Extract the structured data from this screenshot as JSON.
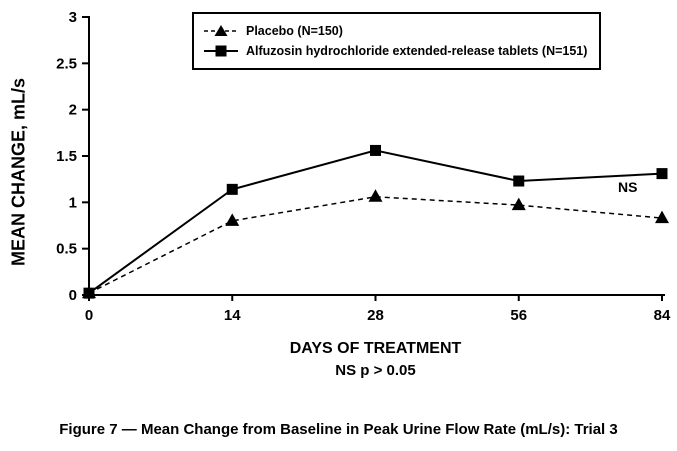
{
  "figure": {
    "caption": "Figure 7 — Mean Change from Baseline in Peak Urine Flow Rate (mL/s): Trial 3"
  },
  "chart_data": {
    "type": "line",
    "x": [
      0,
      14,
      28,
      56,
      84
    ],
    "x_equally_spaced_ticks": true,
    "series": [
      {
        "name": "Placebo (N=150)",
        "marker": "triangle",
        "line_style": "dashed",
        "values": [
          0.02,
          0.8,
          1.06,
          0.97,
          0.83
        ]
      },
      {
        "name": "Alfuzosin hydrochloride extended-release tablets (N=151)",
        "marker": "square",
        "line_style": "solid",
        "values": [
          0.02,
          1.14,
          1.56,
          1.23,
          1.31
        ]
      }
    ],
    "title": "",
    "xlabel": "DAYS OF TREATMENT",
    "ylabel": "MEAN CHANGE, mL/s",
    "ylim": [
      0,
      3
    ],
    "yticks": [
      0,
      0.5,
      1,
      1.5,
      2,
      2.5,
      3
    ],
    "grid": false,
    "legend_position": "top-center",
    "annotation": {
      "text": "NS"
    },
    "footnote": "NS p > 0.05",
    "line_color": "#000000"
  }
}
